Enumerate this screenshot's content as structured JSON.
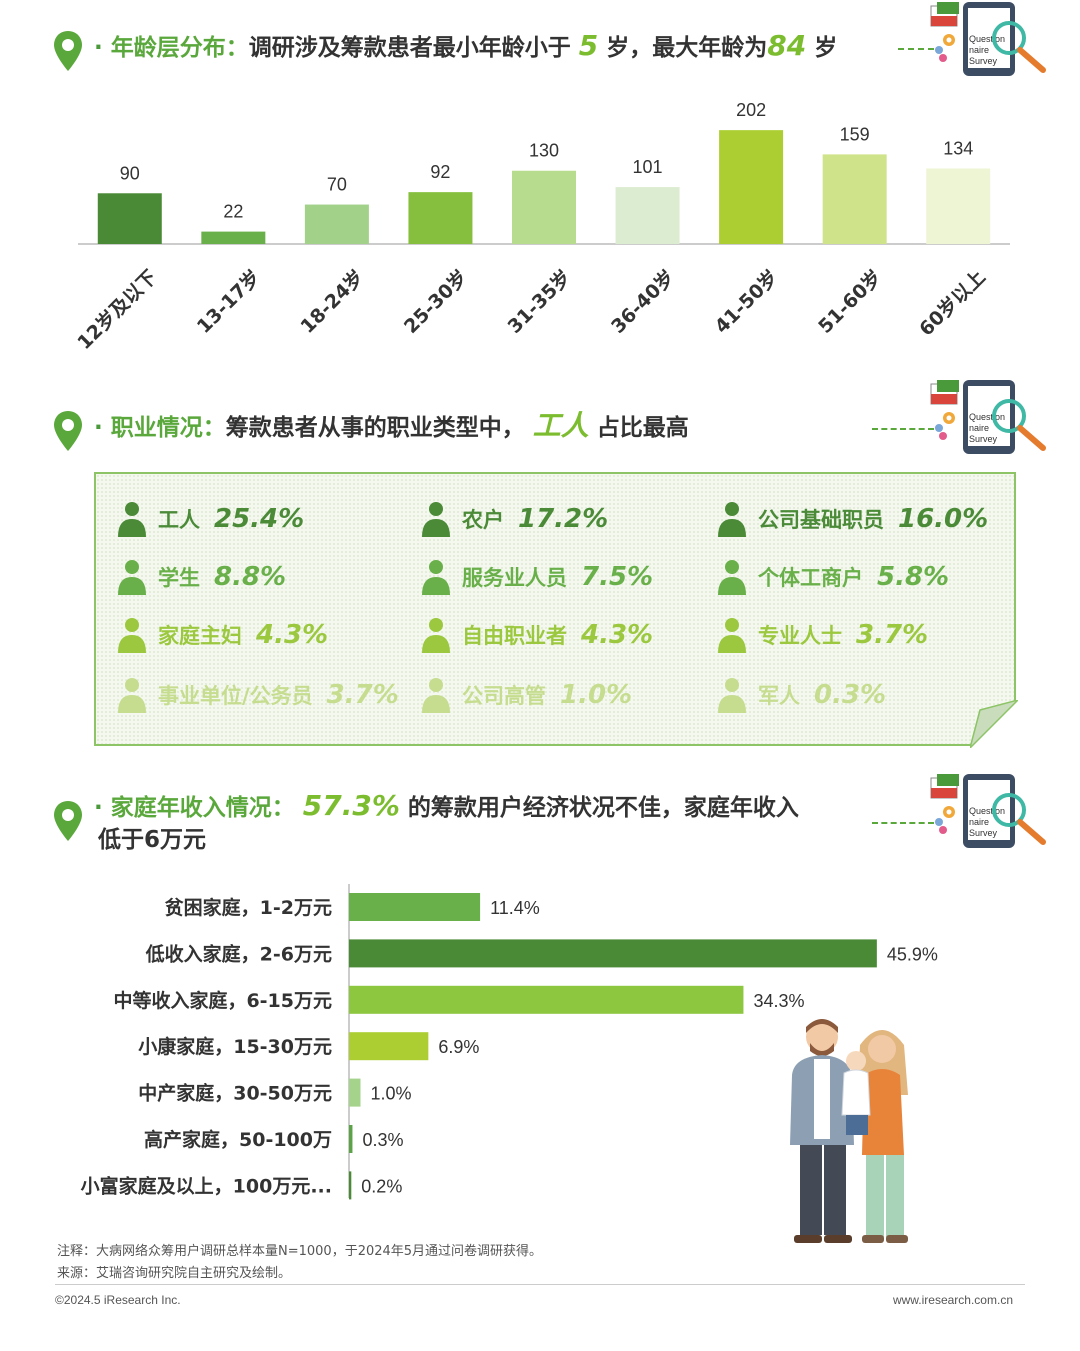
{
  "section1": {
    "title_label": "年龄层分布：",
    "title_text_a": "调研涉及筹款患者最小年龄小于",
    "min_age": "5",
    "title_text_b": "岁，最大年龄为",
    "max_age": "84",
    "title_text_c": "岁"
  },
  "section2": {
    "title_label": "职业情况：",
    "title_text_a": "筹款患者从事的职业类型中，",
    "highlight": "工人",
    "title_text_b": "占比最高"
  },
  "section3": {
    "title_label": "家庭年收入情况：",
    "highlight": "57.3%",
    "title_text_a": "的筹款用户经济状况不佳，家庭年收入",
    "title_text_b": "低于6万元"
  },
  "survey_icon_text": [
    "Question",
    "naire",
    "Survey"
  ],
  "occupations": [
    {
      "label": "工人",
      "value": "25.4%",
      "icon": "worker-icon",
      "color": "#4b8b38"
    },
    {
      "label": "农户",
      "value": "17.2%",
      "icon": "farmer-icon",
      "color": "#4b8b38"
    },
    {
      "label": "公司基础职员",
      "value": "16.0%",
      "icon": "employee-icon",
      "color": "#4b8b38"
    },
    {
      "label": "学生",
      "value": "8.8%",
      "icon": "student-icon",
      "color": "#6ab04a"
    },
    {
      "label": "服务业人员",
      "value": "7.5%",
      "icon": "service-staff-icon",
      "color": "#6ab04a"
    },
    {
      "label": "个体工商户",
      "value": "5.8%",
      "icon": "self-employed-icon",
      "color": "#6ab04a"
    },
    {
      "label": "家庭主妇",
      "value": "4.3%",
      "icon": "housewife-icon",
      "color": "#9bc83e"
    },
    {
      "label": "自由职业者",
      "value": "4.3%",
      "icon": "freelancer-icon",
      "color": "#9bc83e"
    },
    {
      "label": "专业人士",
      "value": "3.7%",
      "icon": "professional-icon",
      "color": "#9bc83e"
    },
    {
      "label": "事业单位/公务员",
      "value": "3.7%",
      "icon": "civil-servant-icon",
      "color": "#c6dd8f"
    },
    {
      "label": "公司高管",
      "value": "1.0%",
      "icon": "executive-icon",
      "color": "#c6dd8f"
    },
    {
      "label": "军人",
      "value": "0.3%",
      "icon": "soldier-icon",
      "color": "#c6dd8f"
    }
  ],
  "chart_data": [
    {
      "type": "bar",
      "categories": [
        "12岁及以下",
        "13-17岁",
        "18-24岁",
        "25-30岁",
        "31-35岁",
        "36-40岁",
        "41-50岁",
        "51-60岁",
        "60岁以上"
      ],
      "values": [
        90,
        22,
        70,
        92,
        130,
        101,
        202,
        159,
        134
      ],
      "colors": [
        "#4a8a36",
        "#6ab04a",
        "#a2d18a",
        "#86bf3e",
        "#b8dc8d",
        "#dcecd0",
        "#acce32",
        "#cfe38a",
        "#eef5d4"
      ],
      "ylim": [
        0,
        220
      ],
      "grid": false,
      "legend": "none"
    },
    {
      "type": "bar",
      "orientation": "horizontal",
      "categories": [
        "贫困家庭，1-2万元",
        "低收入家庭，2-6万元",
        "中等收入家庭，6-15万元",
        "小康家庭，15-30万元",
        "中产家庭，30-50万元",
        "高产家庭，50-100万",
        "小富家庭及以上，100万元..."
      ],
      "values": [
        11.4,
        45.9,
        34.3,
        6.9,
        1.0,
        0.3,
        0.2
      ],
      "value_labels": [
        "11.4%",
        "45.9%",
        "34.3%",
        "6.9%",
        "1.0%",
        "0.3%",
        "0.2%"
      ],
      "colors": [
        "#6ab04a",
        "#4a8a36",
        "#8dc63f",
        "#acce32",
        "#a6d38c",
        "#5ba346",
        "#4a8a36"
      ],
      "xlim": [
        0,
        50
      ],
      "grid": false,
      "legend": "none"
    }
  ],
  "notes": {
    "note1": "注释：大病网络众筹用户调研总样本量N=1000，于2024年5月通过问卷调研获得。",
    "note2": "来源：艾瑞咨询研究院自主研究及绘制。"
  },
  "footer": {
    "copyright": "©2024.5 iResearch Inc.",
    "website": "www.iresearch.com.cn"
  }
}
